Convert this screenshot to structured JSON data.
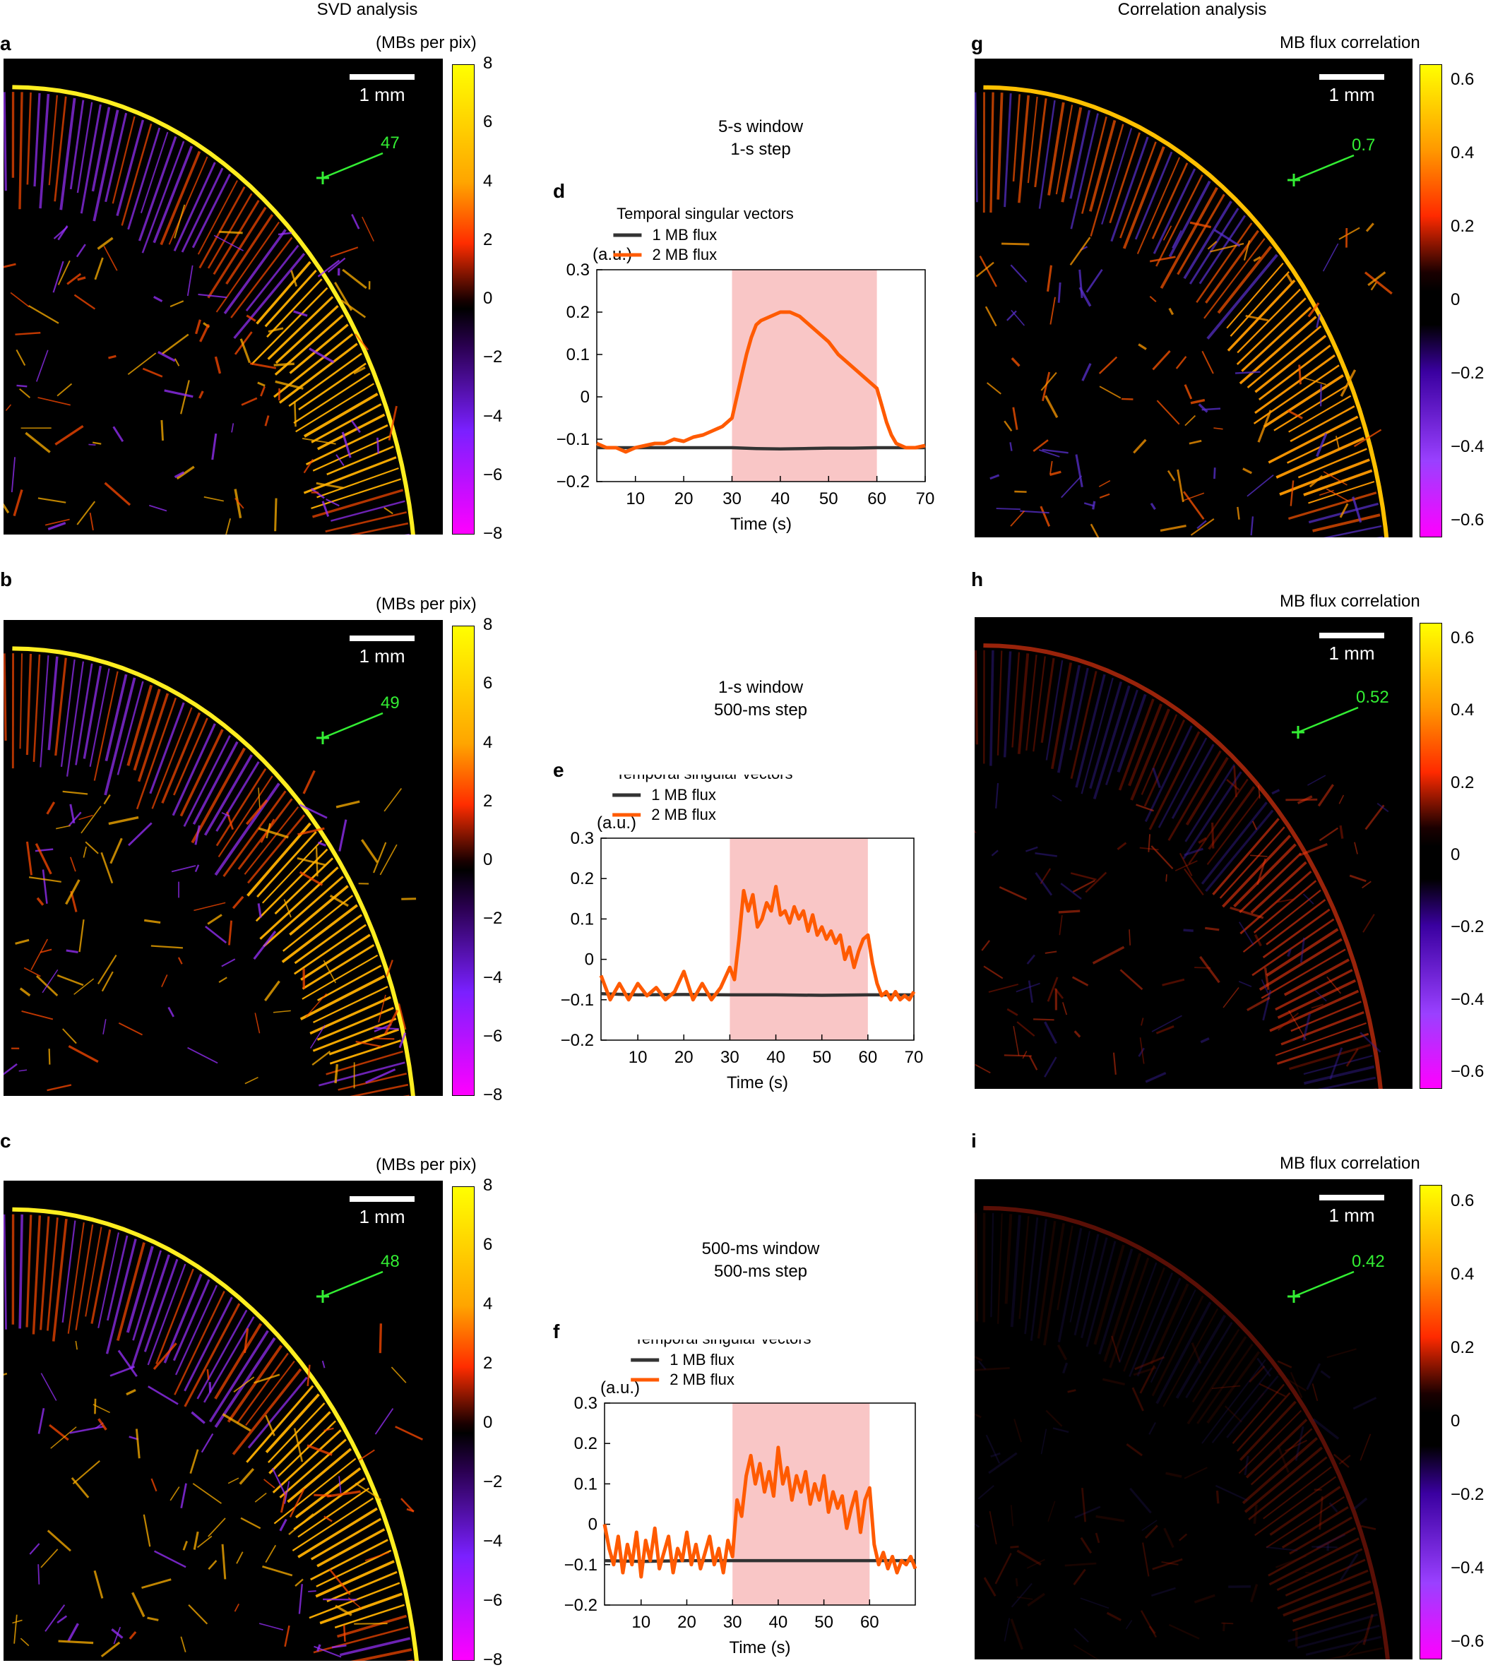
{
  "headers": {
    "svd": "SVD analysis",
    "correlation": "Correlation analysis"
  },
  "panel_labels": {
    "a": "a",
    "b": "b",
    "c": "c",
    "d": "d",
    "e": "e",
    "f": "f",
    "g": "g",
    "h": "h",
    "i": "i"
  },
  "svd_maps": [
    {
      "unit": "(MBs per pix)",
      "scale": "1 mm",
      "roi_value": "47"
    },
    {
      "unit": "(MBs per pix)",
      "scale": "1 mm",
      "roi_value": "49"
    },
    {
      "unit": "(MBs per pix)",
      "scale": "1 mm",
      "roi_value": "48"
    }
  ],
  "svd_colorbar_ticks": [
    "8",
    "6",
    "4",
    "2",
    "0",
    "−2",
    "−4",
    "−6",
    "−8"
  ],
  "corr_maps": [
    {
      "title": "MB flux correlation",
      "scale": "1 mm",
      "roi_value": "0.7"
    },
    {
      "title": "MB flux correlation",
      "scale": "1 mm",
      "roi_value": "0.52"
    },
    {
      "title": "MB flux correlation",
      "scale": "1 mm",
      "roi_value": "0.42"
    }
  ],
  "corr_colorbar_ticks": [
    "0.6",
    "0.4",
    "0.2",
    "0",
    "−0.2",
    "−0.4",
    "−0.6"
  ],
  "window_labels": [
    {
      "line1": "5-s window",
      "line2": "1-s step"
    },
    {
      "line1": "1-s window",
      "line2": "500-ms step"
    },
    {
      "line1": "500-ms window",
      "line2": "500-ms step"
    }
  ],
  "colors": {
    "flux1": "#333333",
    "flux2": "#ff5a00",
    "stim": "#f9c6c6",
    "roi": "#33ee33"
  },
  "chart_data": [
    {
      "type": "line",
      "title": "Temporal singular vectors",
      "xlabel": "Time (s)",
      "ylabel": "(a.u.)",
      "xlim": [
        2,
        70
      ],
      "ylim": [
        -0.2,
        0.3
      ],
      "xticks": [
        10,
        20,
        30,
        40,
        50,
        60,
        70
      ],
      "yticks": [
        -0.2,
        -0.1,
        0,
        0.1,
        0.2,
        0.3
      ],
      "shaded_region": [
        30,
        60
      ],
      "legend_position": "top",
      "series": [
        {
          "name": "1 MB flux",
          "x": [
            2,
            10,
            20,
            30,
            35,
            40,
            45,
            50,
            55,
            60,
            65,
            70
          ],
          "y": [
            -0.12,
            -0.12,
            -0.12,
            -0.12,
            -0.122,
            -0.123,
            -0.122,
            -0.121,
            -0.121,
            -0.12,
            -0.12,
            -0.12
          ]
        },
        {
          "name": "2 MB flux",
          "x": [
            2,
            4,
            6,
            8,
            10,
            12,
            14,
            16,
            18,
            20,
            22,
            24,
            26,
            28,
            30,
            31,
            32,
            33,
            34,
            35,
            36,
            38,
            40,
            42,
            44,
            46,
            48,
            50,
            52,
            54,
            56,
            58,
            60,
            61,
            62,
            63,
            64,
            65,
            66,
            68,
            70
          ],
          "y": [
            -0.11,
            -0.12,
            -0.12,
            -0.13,
            -0.12,
            -0.115,
            -0.11,
            -0.11,
            -0.1,
            -0.105,
            -0.095,
            -0.09,
            -0.08,
            -0.07,
            -0.05,
            0,
            0.05,
            0.1,
            0.14,
            0.17,
            0.18,
            0.19,
            0.2,
            0.2,
            0.19,
            0.17,
            0.15,
            0.13,
            0.1,
            0.08,
            0.06,
            0.04,
            0.02,
            -0.02,
            -0.06,
            -0.09,
            -0.11,
            -0.115,
            -0.12,
            -0.12,
            -0.115
          ]
        }
      ]
    },
    {
      "type": "line",
      "title": "Temporal singular vectors",
      "xlabel": "Time (s)",
      "ylabel": "(a.u.)",
      "xlim": [
        2,
        70
      ],
      "ylim": [
        -0.2,
        0.3
      ],
      "xticks": [
        10,
        20,
        30,
        40,
        50,
        60,
        70
      ],
      "yticks": [
        -0.2,
        -0.1,
        0,
        0.1,
        0.2,
        0.3
      ],
      "shaded_region": [
        30,
        60
      ],
      "legend_position": "top",
      "series": [
        {
          "name": "1 MB flux",
          "x": [
            2,
            10,
            20,
            30,
            40,
            50,
            60,
            70
          ],
          "y": [
            -0.085,
            -0.088,
            -0.087,
            -0.088,
            -0.088,
            -0.089,
            -0.088,
            -0.088
          ]
        },
        {
          "name": "2 MB flux",
          "x": [
            2,
            4,
            6,
            8,
            10,
            12,
            14,
            16,
            18,
            20,
            22,
            24,
            26,
            28,
            30,
            31,
            32,
            33,
            34,
            35,
            36,
            37,
            38,
            39,
            40,
            41,
            42,
            43,
            44,
            45,
            46,
            47,
            48,
            49,
            50,
            51,
            52,
            53,
            54,
            55,
            56,
            57,
            58,
            59,
            60,
            61,
            62,
            63,
            64,
            65,
            66,
            67,
            68,
            69,
            70
          ],
          "y": [
            -0.04,
            -0.1,
            -0.06,
            -0.1,
            -0.06,
            -0.09,
            -0.07,
            -0.1,
            -0.08,
            -0.03,
            -0.1,
            -0.06,
            -0.1,
            -0.07,
            -0.02,
            -0.05,
            0.05,
            0.17,
            0.12,
            0.16,
            0.08,
            0.1,
            0.14,
            0.12,
            0.18,
            0.11,
            0.12,
            0.09,
            0.13,
            0.1,
            0.12,
            0.07,
            0.11,
            0.06,
            0.08,
            0.05,
            0.07,
            0.04,
            0.06,
            0.0,
            0.03,
            -0.02,
            0.02,
            0.05,
            0.06,
            -0.01,
            -0.06,
            -0.09,
            -0.08,
            -0.1,
            -0.08,
            -0.1,
            -0.09,
            -0.1,
            -0.08
          ]
        }
      ]
    },
    {
      "type": "line",
      "title": "Temporal singular vectors",
      "xlabel": "Time (s)",
      "ylabel": "(a.u.)",
      "xlim": [
        2,
        70
      ],
      "ylim": [
        -0.2,
        0.3
      ],
      "xticks": [
        10,
        20,
        30,
        40,
        50,
        60
      ],
      "yticks": [
        -0.2,
        -0.1,
        0,
        0.1,
        0.2,
        0.3
      ],
      "shaded_region": [
        30,
        60
      ],
      "legend_position": "top",
      "series": [
        {
          "name": "1 MB flux",
          "x": [
            2,
            10,
            20,
            30,
            40,
            50,
            60,
            70
          ],
          "y": [
            -0.09,
            -0.092,
            -0.09,
            -0.09,
            -0.09,
            -0.09,
            -0.09,
            -0.09
          ]
        },
        {
          "name": "2 MB flux",
          "x": [
            2,
            3,
            4,
            5,
            6,
            7,
            8,
            9,
            10,
            11,
            12,
            13,
            14,
            15,
            16,
            17,
            18,
            19,
            20,
            21,
            22,
            23,
            24,
            25,
            26,
            27,
            28,
            29,
            30,
            31,
            32,
            33,
            34,
            35,
            36,
            37,
            38,
            39,
            40,
            41,
            42,
            43,
            44,
            45,
            46,
            47,
            48,
            49,
            50,
            51,
            52,
            53,
            54,
            55,
            56,
            57,
            58,
            59,
            60,
            61,
            62,
            63,
            64,
            65,
            66,
            67,
            68,
            69,
            70
          ],
          "y": [
            0.0,
            -0.06,
            -0.1,
            -0.03,
            -0.12,
            -0.05,
            -0.1,
            -0.02,
            -0.13,
            -0.04,
            -0.09,
            -0.01,
            -0.11,
            -0.07,
            -0.03,
            -0.12,
            -0.06,
            -0.09,
            -0.02,
            -0.1,
            -0.05,
            -0.11,
            -0.07,
            -0.03,
            -0.1,
            -0.06,
            -0.12,
            -0.04,
            -0.08,
            0.06,
            0.02,
            0.12,
            0.17,
            0.1,
            0.15,
            0.08,
            0.13,
            0.07,
            0.19,
            0.1,
            0.14,
            0.06,
            0.12,
            0.08,
            0.13,
            0.05,
            0.1,
            0.06,
            0.12,
            0.03,
            0.08,
            0.04,
            0.07,
            -0.01,
            0.04,
            0.08,
            -0.02,
            0.06,
            0.09,
            -0.05,
            -0.1,
            -0.07,
            -0.11,
            -0.08,
            -0.12,
            -0.09,
            -0.1,
            -0.08,
            -0.11
          ]
        }
      ]
    }
  ]
}
